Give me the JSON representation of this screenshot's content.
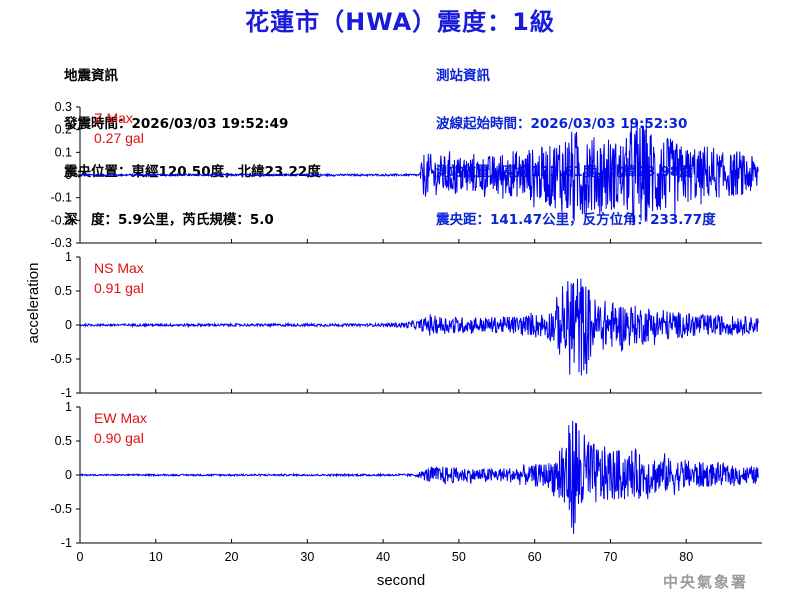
{
  "title": "花蓮市（HWA）震度：1級",
  "earthquake_info": {
    "heading": "地震資訊",
    "time_line": "發震時間：2026/03/03 19:52:49",
    "location_line": "震央位置：東經120.50度，北緯23.22度",
    "depth_line": "深　度：5.9公里，芮氏規模：5.0"
  },
  "station_info": {
    "heading": "測站資訊",
    "wave_start_line": "波線起始時間：2026/03/03 19:52:30",
    "location_line": "測站位置：東經121.61度，北緯23.98度",
    "distance_line": "震央距：141.47公里，反方位角：233.77度"
  },
  "agency": "中央氣象署",
  "colors": {
    "title": "#1a1adb",
    "station_text": "#0b24d6",
    "trace": "#0000ee",
    "max_label": "#e01010"
  },
  "chart_data": {
    "type": "line",
    "xlabel": "second",
    "ylabel": "acceleration",
    "xlim": [
      0,
      90
    ],
    "x_ticks": [
      0,
      10,
      20,
      30,
      40,
      50,
      60,
      70,
      80
    ],
    "panels": [
      {
        "component": "Z",
        "max_label": "Z Max",
        "max_value": "0.27 gal",
        "ylim": [
          -0.3,
          0.3
        ],
        "y_ticks": [
          "0.3",
          "0.2",
          "0.1",
          "0",
          "-0.1",
          "-0.2",
          "-0.3"
        ],
        "series": {
          "x": [
            0,
            44.8,
            45.3,
            47,
            50,
            52,
            55,
            58,
            60,
            62,
            64,
            65,
            66,
            67,
            70,
            72,
            73.5,
            75,
            78,
            80,
            85,
            89.5
          ],
          "envelope": [
            0.004,
            0.004,
            0.1,
            0.09,
            0.085,
            0.08,
            0.09,
            0.1,
            0.12,
            0.13,
            0.18,
            0.2,
            0.2,
            0.18,
            0.15,
            0.16,
            0.26,
            0.2,
            0.16,
            0.12,
            0.1,
            0.08
          ]
        }
      },
      {
        "component": "NS",
        "max_label": "NS Max",
        "max_value": "0.91 gal",
        "ylim": [
          -1,
          1
        ],
        "y_ticks": [
          "1",
          "0.5",
          "0",
          "-0.5",
          "-1"
        ],
        "series": {
          "x": [
            0,
            40,
            44.5,
            46,
            48,
            50,
            52,
            55,
            58,
            60,
            62,
            63,
            64,
            65,
            66,
            67,
            68,
            70,
            72,
            75,
            80,
            85,
            89.5
          ],
          "envelope": [
            0.015,
            0.02,
            0.06,
            0.14,
            0.13,
            0.12,
            0.11,
            0.12,
            0.14,
            0.16,
            0.22,
            0.35,
            0.55,
            0.88,
            0.75,
            0.6,
            0.4,
            0.35,
            0.32,
            0.25,
            0.18,
            0.14,
            0.12
          ]
        }
      },
      {
        "component": "EW",
        "max_label": "EW Max",
        "max_value": "0.90 gal",
        "ylim": [
          -1,
          1
        ],
        "y_ticks": [
          "1",
          "0.5",
          "0",
          "-0.5",
          "-1"
        ],
        "series": {
          "x": [
            0,
            44,
            45,
            46,
            48,
            50,
            52,
            55,
            58,
            60,
            62,
            63,
            64,
            65,
            66,
            67,
            68,
            70,
            72,
            75,
            80,
            85,
            89.5
          ],
          "envelope": [
            0.01,
            0.015,
            0.05,
            0.12,
            0.13,
            0.11,
            0.1,
            0.1,
            0.12,
            0.14,
            0.2,
            0.35,
            0.6,
            0.9,
            0.7,
            0.55,
            0.45,
            0.4,
            0.35,
            0.3,
            0.22,
            0.15,
            0.12
          ]
        }
      }
    ]
  }
}
